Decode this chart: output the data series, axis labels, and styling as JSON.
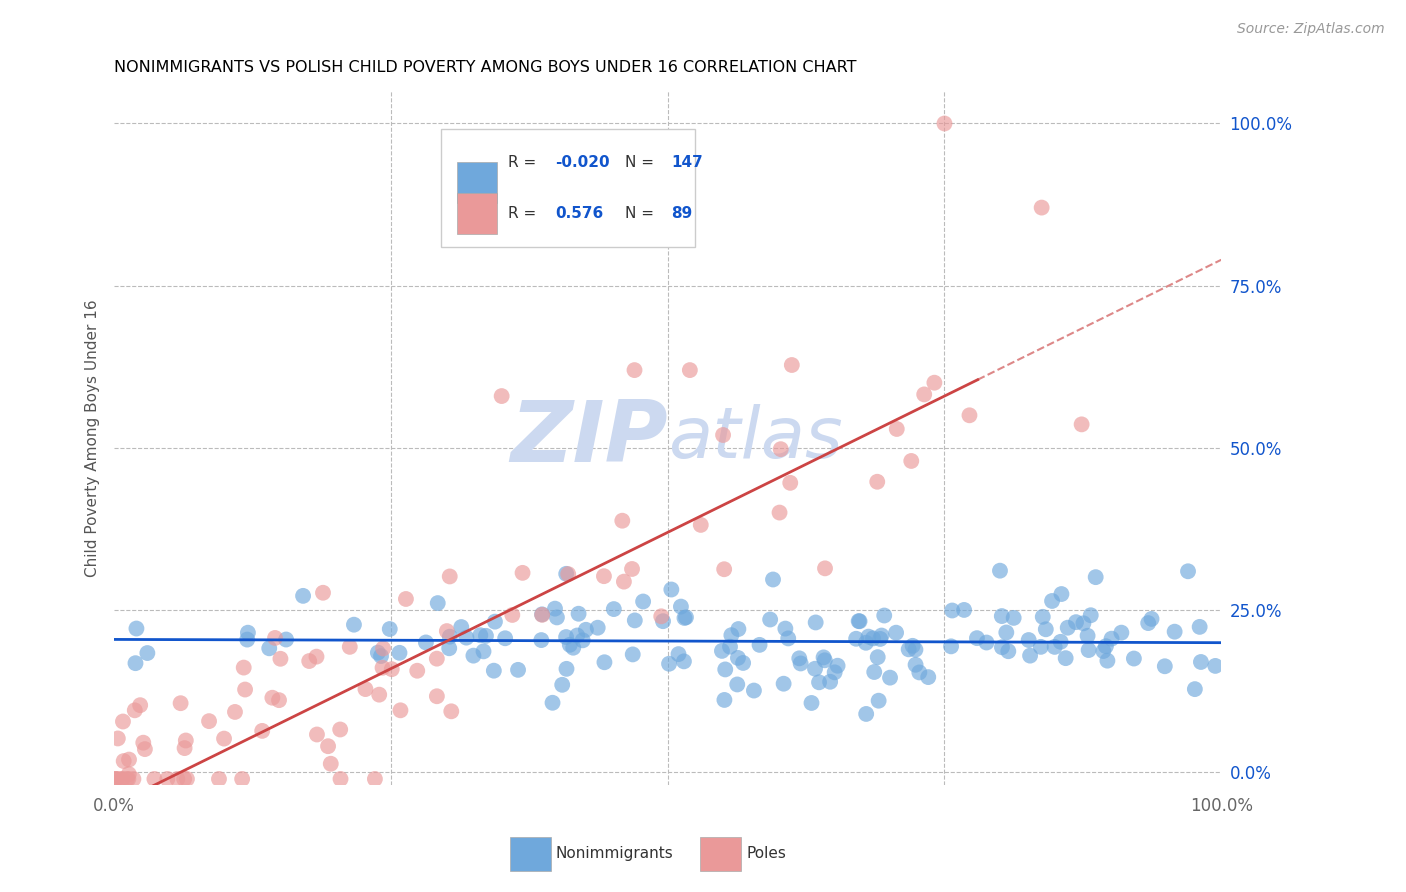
{
  "title": "NONIMMIGRANTS VS POLISH CHILD POVERTY AMONG BOYS UNDER 16 CORRELATION CHART",
  "source": "Source: ZipAtlas.com",
  "ylabel": "Child Poverty Among Boys Under 16",
  "xlim": [
    0,
    1
  ],
  "ylim": [
    -0.02,
    1.05
  ],
  "x_tick_labels": [
    "0.0%",
    "100.0%"
  ],
  "y_tick_labels": [
    "0.0%",
    "25.0%",
    "50.0%",
    "75.0%",
    "100.0%"
  ],
  "y_tick_positions": [
    0.0,
    0.25,
    0.5,
    0.75,
    1.0
  ],
  "blue_R": "-0.020",
  "blue_N": "147",
  "pink_R": "0.576",
  "pink_N": "89",
  "blue_color": "#6fa8dc",
  "pink_color": "#ea9999",
  "blue_line_color": "#1155cc",
  "pink_line_color": "#cc4444",
  "trend_line_color": "#dd8888",
  "watermark_color": "#ccd9f0",
  "background_color": "#ffffff",
  "grid_color": "#bbbbbb",
  "title_color": "#000000",
  "source_color": "#999999",
  "legend_label_blue": "Nonimmigrants",
  "legend_label_pink": "Poles",
  "seed": 42
}
